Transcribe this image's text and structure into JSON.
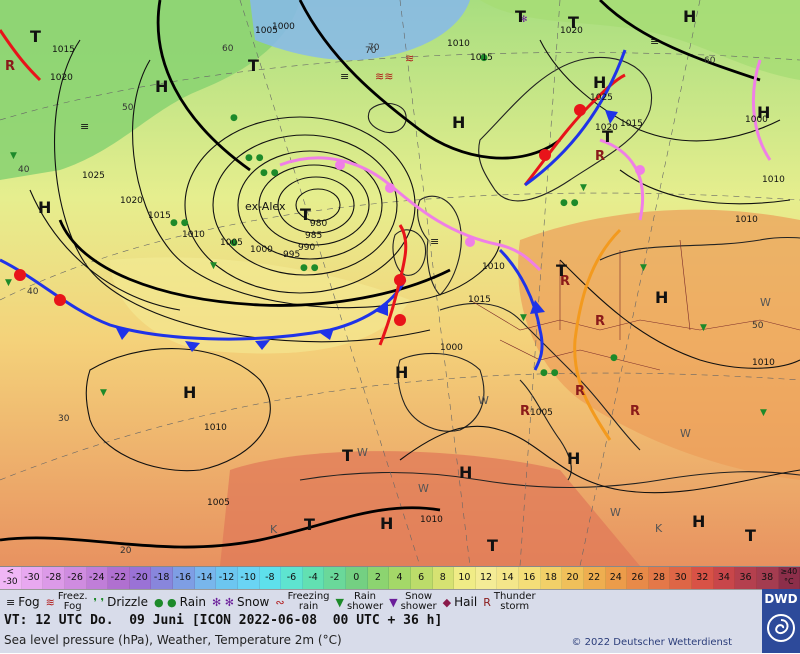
{
  "map": {
    "lows": [
      {
        "label": "T",
        "name": "ex-Alex",
        "pressure": "980"
      }
    ],
    "high_markers": [
      "H",
      "H",
      "H",
      "H",
      "H",
      "H",
      "H",
      "H",
      "H",
      "H",
      "H",
      "H",
      "H"
    ],
    "low_markers": [
      "T",
      "T",
      "T",
      "T",
      "T",
      "T",
      "T",
      "T",
      "T",
      "T"
    ],
    "isobar_labels": [
      "1015",
      "1020",
      "1025",
      "1020",
      "1010",
      "1005",
      "1000",
      "995",
      "990",
      "985",
      "980",
      "1015",
      "1010",
      "1005",
      "1000",
      "1010",
      "1015",
      "1020",
      "1025",
      "1020",
      "1015",
      "1010",
      "1010",
      "1005",
      "1000",
      "1010",
      "1015",
      "1000",
      "1010",
      "1005",
      "1010"
    ],
    "latitude_labels": [
      "70",
      "60",
      "60",
      "50",
      "40",
      "40",
      "30",
      "20",
      "70",
      "50"
    ],
    "wind_labels": [
      "W",
      "W",
      "W",
      "W",
      "W",
      "W",
      "K",
      "K"
    ]
  },
  "scale": {
    "unit_top": "≥40",
    "unit_bottom": "°C",
    "first_top": "<",
    "first_bottom": "-30",
    "values": [
      "-30",
      "-28",
      "-26",
      "-24",
      "-22",
      "-20",
      "-18",
      "-16",
      "-14",
      "-12",
      "-10",
      "-8",
      "-6",
      "-4",
      "-2",
      "0",
      "2",
      "4",
      "6",
      "8",
      "10",
      "12",
      "14",
      "16",
      "18",
      "20",
      "22",
      "24",
      "26",
      "28",
      "30",
      "32",
      "34",
      "36",
      "38"
    ],
    "colors": [
      "#e8a8f0",
      "#dc9ae8",
      "#cf8ce0",
      "#c07ed8",
      "#b070d0",
      "#9a72d6",
      "#8886dc",
      "#7e9ee4",
      "#78b6ec",
      "#6cc6f0",
      "#6ad4f4",
      "#5ee0ec",
      "#5ee4d0",
      "#62e0b2",
      "#6ad89a",
      "#74d082",
      "#8cd470",
      "#a4d868",
      "#bcdc6a",
      "#d6e272",
      "#f0ec86",
      "#f4ec96",
      "#f4e68a",
      "#f4de78",
      "#f2d068",
      "#f0c05a",
      "#eeae50",
      "#ec9c4a",
      "#e88a48",
      "#e47848",
      "#de6646",
      "#d85246",
      "#c8464a",
      "#b4404e",
      "#a43c50"
    ],
    "hot_label": "≥40"
  },
  "legend": [
    {
      "icon": "fog-icon",
      "label": "Fog"
    },
    {
      "icon": "freezing-fog-icon",
      "label1": "Freez.",
      "label2": "Fog"
    },
    {
      "icon": "drizzle-icon",
      "label": "Drizzle"
    },
    {
      "icon": "rain-icon",
      "label": "Rain"
    },
    {
      "icon": "snow-icon",
      "label": "Snow"
    },
    {
      "icon": "freezing-rain-icon",
      "label1": "Freezing",
      "label2": "rain"
    },
    {
      "icon": "rain-shower-icon",
      "label1": "Rain",
      "label2": "shower"
    },
    {
      "icon": "snow-shower-icon",
      "label1": "Snow",
      "label2": "shower"
    },
    {
      "icon": "hail-icon",
      "label": "Hail"
    },
    {
      "icon": "thunderstorm-icon",
      "label1": "Thunder",
      "label2": "storm"
    }
  ],
  "footer": {
    "valid_time": "VT: 12 UTC Do.  09 Juni [ICON 2022-06-08  00 UTC + 36 h]",
    "description": "Sea level pressure (hPa), Weather, Temperature 2m (°C)",
    "copyright": "© 2022 Deutscher Wetterdienst"
  },
  "logo": {
    "text": "DWD"
  },
  "colors": {
    "warm_front": "#e8141a",
    "cold_front": "#1f33e8",
    "occluded_front": "#ef7fe6",
    "trough": "#f39a1e",
    "isobar": "#000000",
    "border": "#7a2a2a"
  }
}
